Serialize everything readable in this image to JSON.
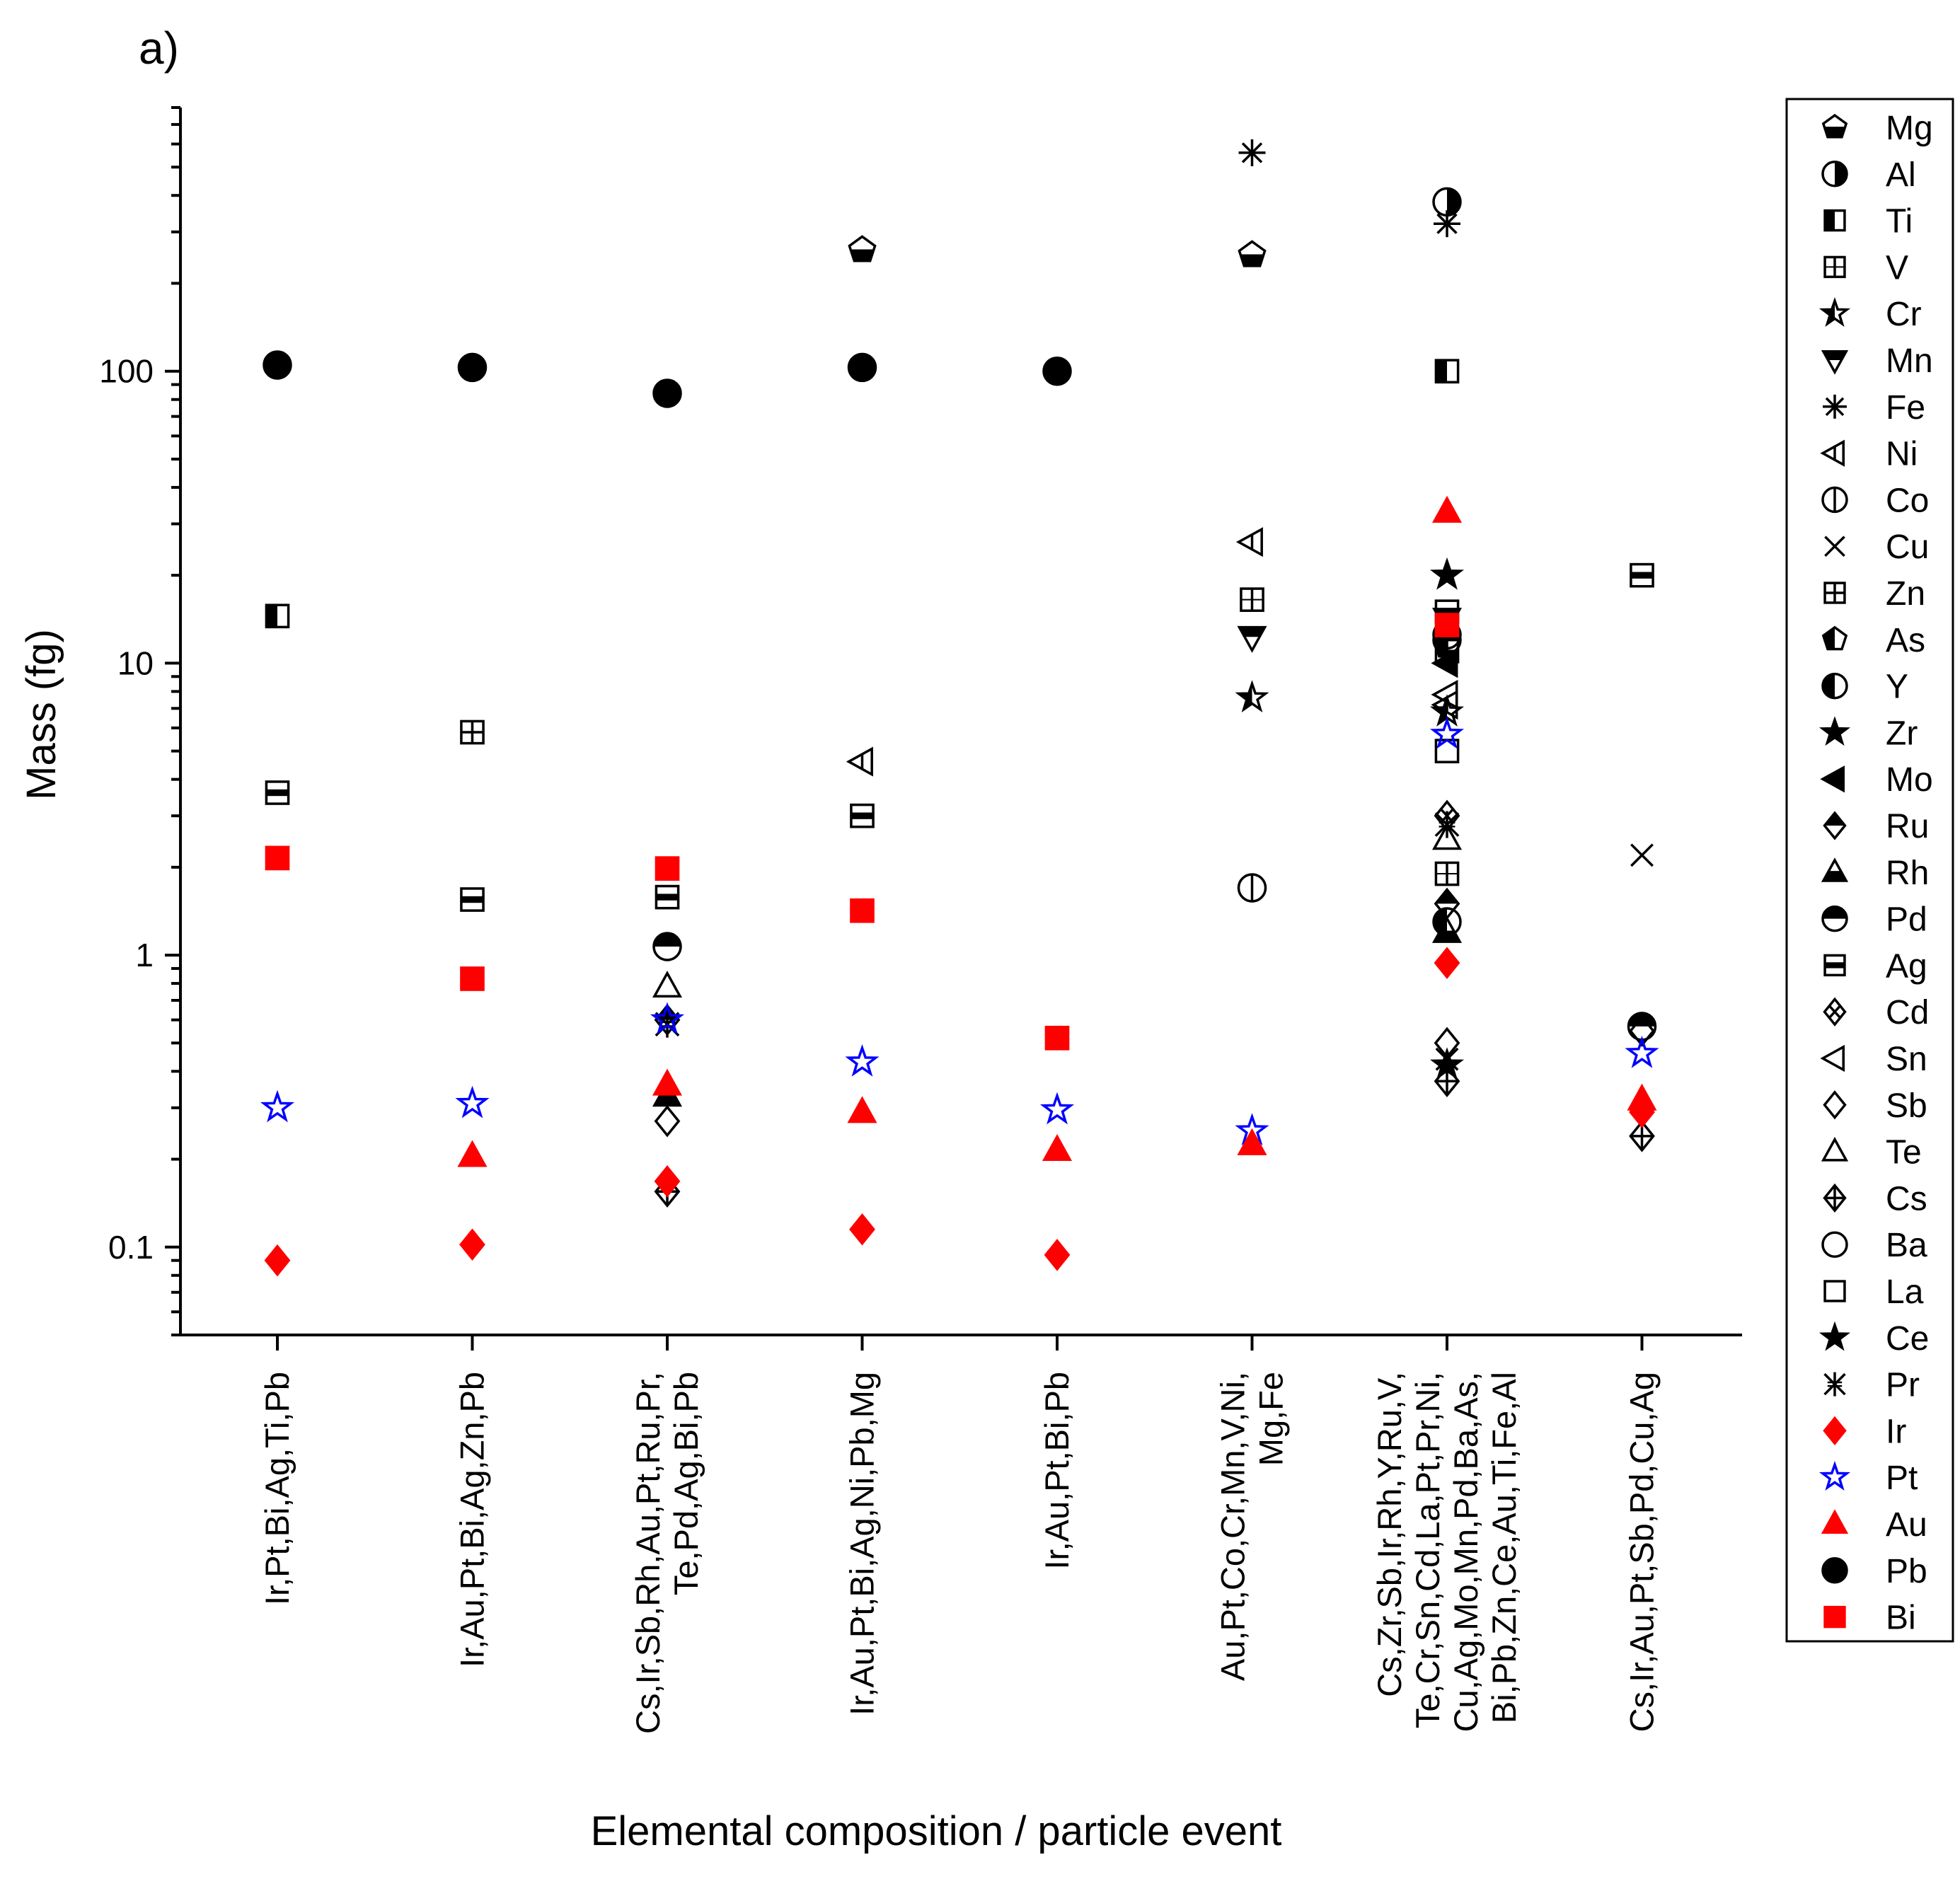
{
  "chart_data": {
    "type": "scatter",
    "panel_label": "a)",
    "title": "",
    "xlabel": "Elemental composition / particle event",
    "ylabel": "Mass (fg)",
    "yscale": "log",
    "ylim": [
      0.05,
      800
    ],
    "y_ticks": [
      0.1,
      1,
      10,
      100
    ],
    "y_tick_labels": [
      "0.1",
      "1",
      "10",
      "100"
    ],
    "grid": false,
    "legend_position": "right",
    "categories": [
      [
        "Ir,Pt,Bi,Ag,Ti,Pb"
      ],
      [
        "Ir,Au,Pt,Bi,Ag,Zn,Pb"
      ],
      [
        "Cs,Ir,Sb,Rh,Au,Pt,Ru,Pr,",
        "Te,Pd,Ag,Bi,Pb"
      ],
      [
        "Ir,Au,Pt,Bi,Ag,Ni,Pb,Mg"
      ],
      [
        "Ir,Au,Pt,Bi,Pb"
      ],
      [
        "Au,Pt,Co,Cr,Mn,V,Ni,",
        "Mg,Fe"
      ],
      [
        "Cs,Zr,Sb,Ir,Rh,Y,Ru,V,",
        "Te,Cr,Sn,Cd,La,Pt,Pr,Ni,",
        "Cu,Ag,Mo,Mn,Pd,Ba,As,",
        "Bi,Pb,Zn,Ce,Au,Ti,Fe,Al"
      ],
      [
        "Cs,Ir,Au,Pt,Sb,Pd,Cu,Ag"
      ]
    ],
    "legend": [
      "Mg",
      "Al",
      "Ti",
      "V",
      "Cr",
      "Mn",
      "Fe",
      "Ni",
      "Co",
      "Cu",
      "Zn",
      "As",
      "Y",
      "Zr",
      "Mo",
      "Ru",
      "Rh",
      "Pd",
      "Ag",
      "Cd",
      "Sn",
      "Sb",
      "Te",
      "Cs",
      "Ba",
      "La",
      "Ce",
      "Pr",
      "Ir",
      "Pt",
      "Au",
      "Pb",
      "Bi"
    ],
    "series": [
      {
        "name": "Mg",
        "marker": "pentagon-bottom-half",
        "color": "#000000",
        "points": [
          [
            3,
            260
          ],
          [
            5,
            250
          ]
        ]
      },
      {
        "name": "Al",
        "marker": "circle-right-half",
        "color": "#000000",
        "points": [
          [
            6,
            380
          ]
        ]
      },
      {
        "name": "Ti",
        "marker": "square-left-half",
        "color": "#000000",
        "points": [
          [
            0,
            14.5
          ],
          [
            6,
            100
          ]
        ]
      },
      {
        "name": "V",
        "marker": "square-cross-lines",
        "color": "#000000",
        "points": [
          [
            5,
            16.5
          ],
          [
            6,
            1.9
          ]
        ]
      },
      {
        "name": "Cr",
        "marker": "star-left-half",
        "color": "#000000",
        "points": [
          [
            5,
            7.6
          ],
          [
            6,
            6.8
          ]
        ]
      },
      {
        "name": "Mn",
        "marker": "triangle-down-top-half",
        "color": "#000000",
        "points": [
          [
            5,
            12.3
          ],
          [
            6,
            14.2
          ]
        ]
      },
      {
        "name": "Fe",
        "marker": "asterisk",
        "color": "#000000",
        "points": [
          [
            5,
            560
          ],
          [
            6,
            320
          ]
        ]
      },
      {
        "name": "Ni",
        "marker": "triangle-left-half",
        "color": "#000000",
        "points": [
          [
            3,
            4.6
          ],
          [
            5,
            26
          ],
          [
            6,
            7.2
          ]
        ]
      },
      {
        "name": "Co",
        "marker": "circle-vertical-line",
        "color": "#000000",
        "points": [
          [
            5,
            1.7
          ]
        ]
      },
      {
        "name": "Cu",
        "marker": "x",
        "color": "#000000",
        "points": [
          [
            6,
            0.44
          ],
          [
            7,
            2.2
          ]
        ]
      },
      {
        "name": "Zn",
        "marker": "square-cross",
        "color": "#000000",
        "points": [
          [
            1,
            5.8
          ],
          [
            6,
            11
          ]
        ]
      },
      {
        "name": "As",
        "marker": "pentagon-left-half",
        "color": "#000000",
        "points": [
          [
            6,
            11.5
          ]
        ]
      },
      {
        "name": "Y",
        "marker": "circle-left-half",
        "color": "#000000",
        "points": [
          [
            6,
            1.3
          ]
        ]
      },
      {
        "name": "Zr",
        "marker": "star",
        "color": "#000000",
        "points": [
          [
            6,
            20
          ]
        ]
      },
      {
        "name": "Mo",
        "marker": "triangle-left-filled",
        "color": "#000000",
        "points": [
          [
            6,
            10
          ]
        ]
      },
      {
        "name": "Ru",
        "marker": "diamond-top-half",
        "color": "#000000",
        "points": [
          [
            2,
            0.6
          ],
          [
            6,
            1.5
          ]
        ]
      },
      {
        "name": "Rh",
        "marker": "triangle-bottom-half",
        "color": "#000000",
        "points": [
          [
            2,
            0.33
          ],
          [
            6,
            1.2
          ]
        ]
      },
      {
        "name": "Pd",
        "marker": "circle-top-half",
        "color": "#000000",
        "points": [
          [
            2,
            1.07
          ],
          [
            6,
            12
          ],
          [
            7,
            0.57
          ]
        ]
      },
      {
        "name": "Ag",
        "marker": "square-middle-band",
        "color": "#000000",
        "points": [
          [
            0,
            3.6
          ],
          [
            1,
            1.55
          ],
          [
            2,
            1.58
          ],
          [
            3,
            3.0
          ],
          [
            6,
            15
          ],
          [
            7,
            20
          ]
        ]
      },
      {
        "name": "Cd",
        "marker": "diamond-x",
        "color": "#000000",
        "points": [
          [
            6,
            3.0
          ]
        ]
      },
      {
        "name": "Sn",
        "marker": "triangle-left",
        "color": "#000000",
        "points": [
          [
            6,
            7.8
          ]
        ]
      },
      {
        "name": "Sb",
        "marker": "diamond",
        "color": "#000000",
        "points": [
          [
            2,
            0.27
          ],
          [
            6,
            0.5
          ],
          [
            7,
            0.55
          ]
        ]
      },
      {
        "name": "Te",
        "marker": "triangle",
        "color": "#000000",
        "points": [
          [
            2,
            0.78
          ],
          [
            6,
            2.5
          ]
        ]
      },
      {
        "name": "Cs",
        "marker": "diamond-plus",
        "color": "#000000",
        "points": [
          [
            2,
            0.155
          ],
          [
            6,
            0.37
          ],
          [
            7,
            0.24
          ]
        ]
      },
      {
        "name": "Ba",
        "marker": "circle",
        "color": "#000000",
        "points": [
          [
            6,
            12.5
          ]
        ]
      },
      {
        "name": "La",
        "marker": "square",
        "color": "#000000",
        "points": [
          [
            6,
            5.0
          ]
        ]
      },
      {
        "name": "Ce",
        "marker": "star-filled",
        "color": "#000000",
        "points": [
          [
            6,
            0.42
          ]
        ]
      },
      {
        "name": "Pr",
        "marker": "asterisk-x",
        "color": "#000000",
        "points": [
          [
            2,
            0.58
          ],
          [
            6,
            2.8
          ]
        ]
      },
      {
        "name": "Ir",
        "marker": "diamond-filled",
        "color": "#ff0000",
        "points": [
          [
            0,
            0.09
          ],
          [
            1,
            0.102
          ],
          [
            2,
            0.168
          ],
          [
            3,
            0.115
          ],
          [
            4,
            0.094
          ],
          [
            6,
            0.94
          ],
          [
            7,
            0.29
          ]
        ]
      },
      {
        "name": "Pt",
        "marker": "star-open",
        "color": "#0000ff",
        "points": [
          [
            0,
            0.3
          ],
          [
            1,
            0.31
          ],
          [
            2,
            0.6
          ],
          [
            3,
            0.43
          ],
          [
            4,
            0.295
          ],
          [
            5,
            0.25
          ],
          [
            6,
            5.7
          ],
          [
            7,
            0.46
          ]
        ]
      },
      {
        "name": "Au",
        "marker": "triangle-filled",
        "color": "#ff0000",
        "points": [
          [
            1,
            0.205
          ],
          [
            2,
            0.36
          ],
          [
            3,
            0.29
          ],
          [
            4,
            0.215
          ],
          [
            5,
            0.225
          ],
          [
            6,
            33
          ],
          [
            7,
            0.32
          ]
        ]
      },
      {
        "name": "Pb",
        "marker": "circle-filled",
        "color": "#000000",
        "points": [
          [
            0,
            105
          ],
          [
            1,
            103
          ],
          [
            2,
            84
          ],
          [
            3,
            103
          ],
          [
            4,
            100
          ]
        ]
      },
      {
        "name": "Bi",
        "marker": "square-filled",
        "color": "#ff0000",
        "points": [
          [
            0,
            2.15
          ],
          [
            1,
            0.83
          ],
          [
            2,
            1.98
          ],
          [
            3,
            1.42
          ],
          [
            4,
            0.52
          ],
          [
            6,
            13.5
          ]
        ]
      }
    ]
  }
}
